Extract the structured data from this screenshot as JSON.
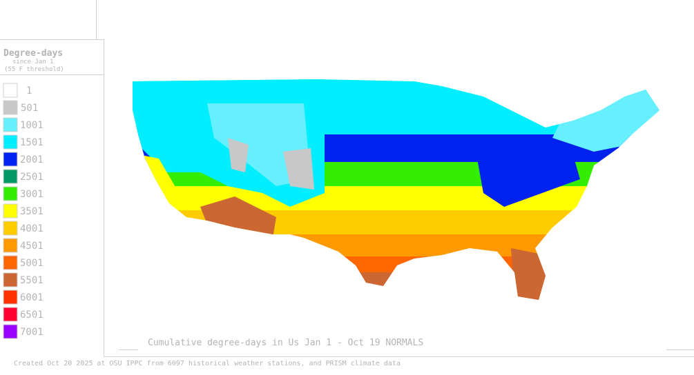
{
  "legend": {
    "title": "Degree-days",
    "subtitle_lines": [
      "since Jan 1",
      "(55 F threshold)"
    ],
    "items": [
      {
        "label": "1",
        "color": "#ffffff"
      },
      {
        "label": "501",
        "color": "#c8c8c8"
      },
      {
        "label": "1001",
        "color": "#66f0ff"
      },
      {
        "label": "1501",
        "color": "#00eeff"
      },
      {
        "label": "2001",
        "color": "#0022ee"
      },
      {
        "label": "2501",
        "color": "#009966"
      },
      {
        "label": "3001",
        "color": "#33ee00"
      },
      {
        "label": "3501",
        "color": "#ffff00"
      },
      {
        "label": "4001",
        "color": "#ffcc00"
      },
      {
        "label": "4501",
        "color": "#ff9900"
      },
      {
        "label": "5001",
        "color": "#ff6600"
      },
      {
        "label": "5501",
        "color": "#cc6633"
      },
      {
        "label": "6001",
        "color": "#ff3300"
      },
      {
        "label": "6501",
        "color": "#ff0033"
      },
      {
        "label": "7001",
        "color": "#9900ff"
      }
    ]
  },
  "caption": "Cumulative degree-days in Us  Jan 1 - Oct 19 NORMALS",
  "footer": "Created Oct 20 2025 at OSU IPPC from 6097 historical weather stations, and PRISM climate data"
}
